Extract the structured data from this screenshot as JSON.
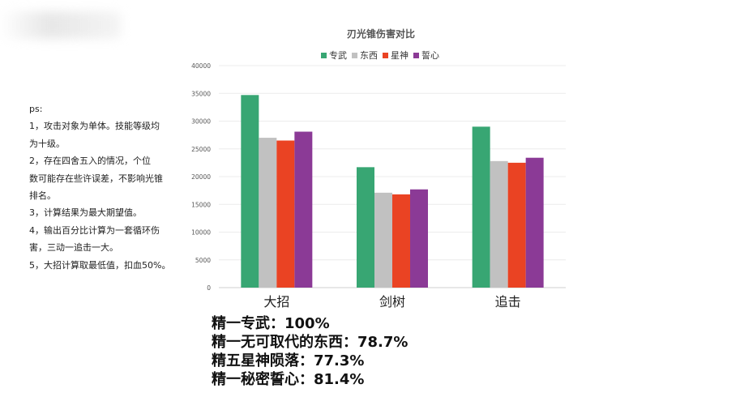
{
  "notes": {
    "title": "ps:",
    "lines": [
      "1，攻击对象为单体。技能等级均",
      "为十级。",
      "2，存在四舍五入的情况，个位",
      "数可能存在些许误差，不影响光锥",
      "排名。",
      "3，计算结果为最大期望值。",
      "4，输出百分比计算为一套循环伤",
      "害，三动一追击一大。",
      "5，大招计算取最低值，扣血50%。"
    ]
  },
  "chart_data": {
    "type": "bar",
    "title": "刃光锥伤害对比",
    "categories": [
      "大招",
      "剑树",
      "追击"
    ],
    "series": [
      {
        "name": "专武",
        "color": "#38A673",
        "values": [
          34700,
          21700,
          29000
        ]
      },
      {
        "name": "东西",
        "color": "#C1C1C1",
        "values": [
          27000,
          17100,
          22800
        ]
      },
      {
        "name": "星神",
        "color": "#EA4323",
        "values": [
          26500,
          16800,
          22500
        ]
      },
      {
        "name": "誓心",
        "color": "#8B3A96",
        "values": [
          28100,
          17700,
          23400
        ]
      }
    ],
    "ylim": [
      0,
      40000
    ],
    "yticks": [
      0,
      5000,
      10000,
      15000,
      20000,
      25000,
      30000,
      35000,
      40000
    ],
    "xlabel": "",
    "ylabel": "",
    "legend": "top",
    "grid": true
  },
  "summary": {
    "lines": [
      "精一专武：100%",
      "精一无可取代的东西：78.7%",
      "精五星神陨落：77.3%",
      "精一秘密誓心：81.4%"
    ]
  }
}
